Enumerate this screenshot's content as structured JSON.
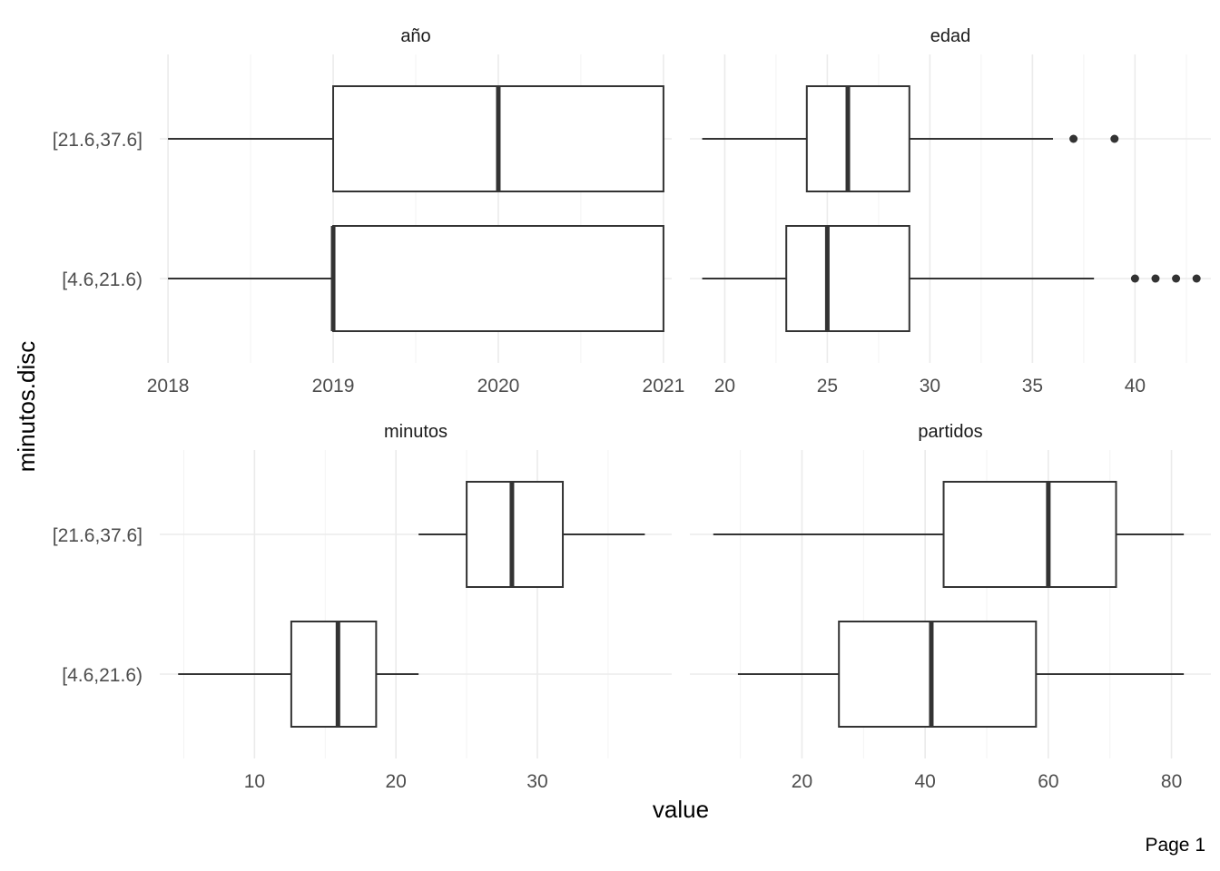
{
  "chart_data": {
    "type": "boxplot",
    "xlabel": "value",
    "ylabel": "minutos.disc",
    "categories": [
      "[4.6,21.6)",
      "[21.6,37.6]"
    ],
    "grid": true,
    "facets": [
      {
        "title": "año",
        "xlim": [
          2017.95,
          2021.05
        ],
        "xticks": [
          2018,
          2019,
          2020,
          2021
        ],
        "xtick_labels": [
          "2018",
          "2019",
          "2020",
          "2021"
        ],
        "boxes": [
          {
            "category": "[21.6,37.6]",
            "whisker_low": 2018,
            "q1": 2019,
            "median": 2020,
            "q3": 2021,
            "whisker_high": 2021,
            "outliers": []
          },
          {
            "category": "[4.6,21.6)",
            "whisker_low": 2018,
            "q1": 2019,
            "median": 2019,
            "q3": 2021,
            "whisker_high": 2021,
            "outliers": []
          }
        ]
      },
      {
        "title": "edad",
        "xlim": [
          18.3,
          43.7
        ],
        "xticks": [
          20,
          25,
          30,
          35,
          40
        ],
        "xtick_labels": [
          "20",
          "25",
          "30",
          "35",
          "40"
        ],
        "boxes": [
          {
            "category": "[21.6,37.6]",
            "whisker_low": 18.9,
            "q1": 24,
            "median": 26,
            "q3": 29,
            "whisker_high": 36,
            "outliers": [
              37,
              39
            ]
          },
          {
            "category": "[4.6,21.6)",
            "whisker_low": 18.9,
            "q1": 23,
            "median": 25,
            "q3": 29,
            "whisker_high": 38,
            "outliers": [
              40,
              41,
              42,
              43
            ]
          }
        ]
      },
      {
        "title": "minutos",
        "xlim": [
          3.3,
          39.5
        ],
        "xticks": [
          10,
          20,
          30
        ],
        "xtick_labels": [
          "10",
          "20",
          "30"
        ],
        "boxes": [
          {
            "category": "[21.6,37.6]",
            "whisker_low": 21.6,
            "q1": 25,
            "median": 28.2,
            "q3": 31.8,
            "whisker_high": 37.6,
            "outliers": []
          },
          {
            "category": "[4.6,21.6)",
            "whisker_low": 4.6,
            "q1": 12.6,
            "median": 15.9,
            "q3": 18.6,
            "whisker_high": 21.6,
            "outliers": []
          }
        ]
      },
      {
        "title": "partidos",
        "xlim": [
          1.8,
          86.4
        ],
        "xticks": [
          20,
          40,
          60,
          80
        ],
        "xtick_labels": [
          "20",
          "40",
          "60",
          "80"
        ],
        "boxes": [
          {
            "category": "[21.6,37.6]",
            "whisker_low": 5.6,
            "q1": 43,
            "median": 60,
            "q3": 71,
            "whisker_high": 82,
            "outliers": []
          },
          {
            "category": "[4.6,21.6)",
            "whisker_low": 9.6,
            "q1": 26,
            "median": 41,
            "q3": 58,
            "whisker_high": 82,
            "outliers": []
          }
        ]
      }
    ]
  },
  "page_label": "Page 1"
}
